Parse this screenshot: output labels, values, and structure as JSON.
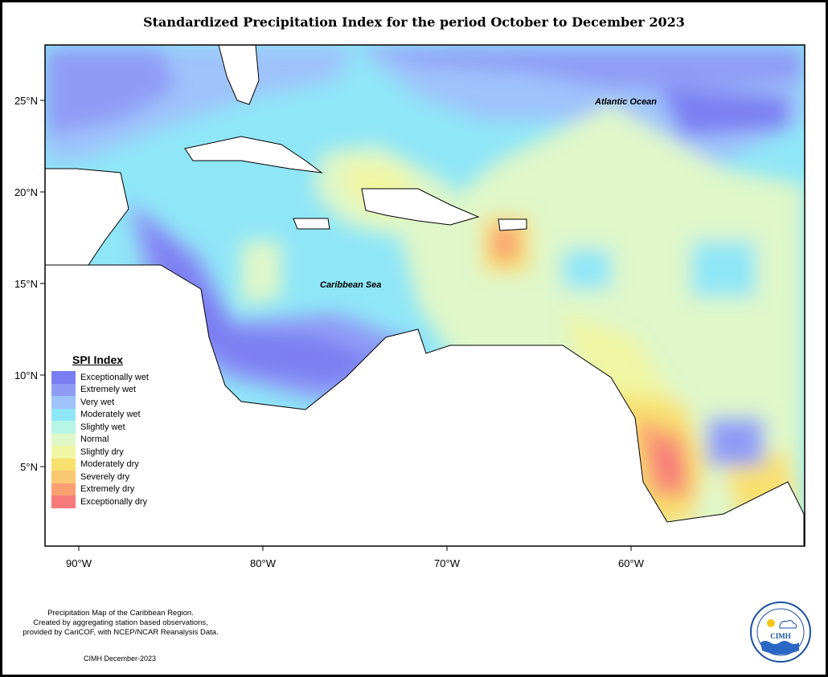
{
  "title": "Standardized Precipitation Index for the period October to December 2023",
  "map": {
    "ocean_labels": {
      "atlantic": "Atlantic Ocean",
      "caribbean": "Caribbean Sea"
    },
    "lat_ticks": [
      "25°N",
      "20°N",
      "15°N",
      "10°N",
      "5°N"
    ],
    "lon_ticks": [
      "90°W",
      "80°W",
      "70°W",
      "60°W"
    ]
  },
  "legend": {
    "title": "SPI Index",
    "items": [
      {
        "label": "Exceptionally wet",
        "color": "#7b7ef2"
      },
      {
        "label": "Extremely wet",
        "color": "#8f9cf6"
      },
      {
        "label": "Very wet",
        "color": "#9fc3fb"
      },
      {
        "label": "Moderately wet",
        "color": "#8fe6f7"
      },
      {
        "label": "Slightly wet",
        "color": "#b7f6e4"
      },
      {
        "label": "Normal",
        "color": "#dff7c9"
      },
      {
        "label": "Slightly dry",
        "color": "#f0f6a3"
      },
      {
        "label": "Moderately dry",
        "color": "#f8e06f"
      },
      {
        "label": "Severely dry",
        "color": "#fbc872"
      },
      {
        "label": "Extremely dry",
        "color": "#f9a072"
      },
      {
        "label": "Exceptionally dry",
        "color": "#f77a7a"
      }
    ]
  },
  "footer": {
    "line1": "Precipitation Map of the Caribbean Region.",
    "line2": "Created by aggregating station based observations,",
    "line3": "provided by CariCOF, with NCEP/NCAR Reanalysis Data.",
    "date_note": "CIMH December-2023"
  },
  "logo": {
    "text": "CIMH"
  }
}
